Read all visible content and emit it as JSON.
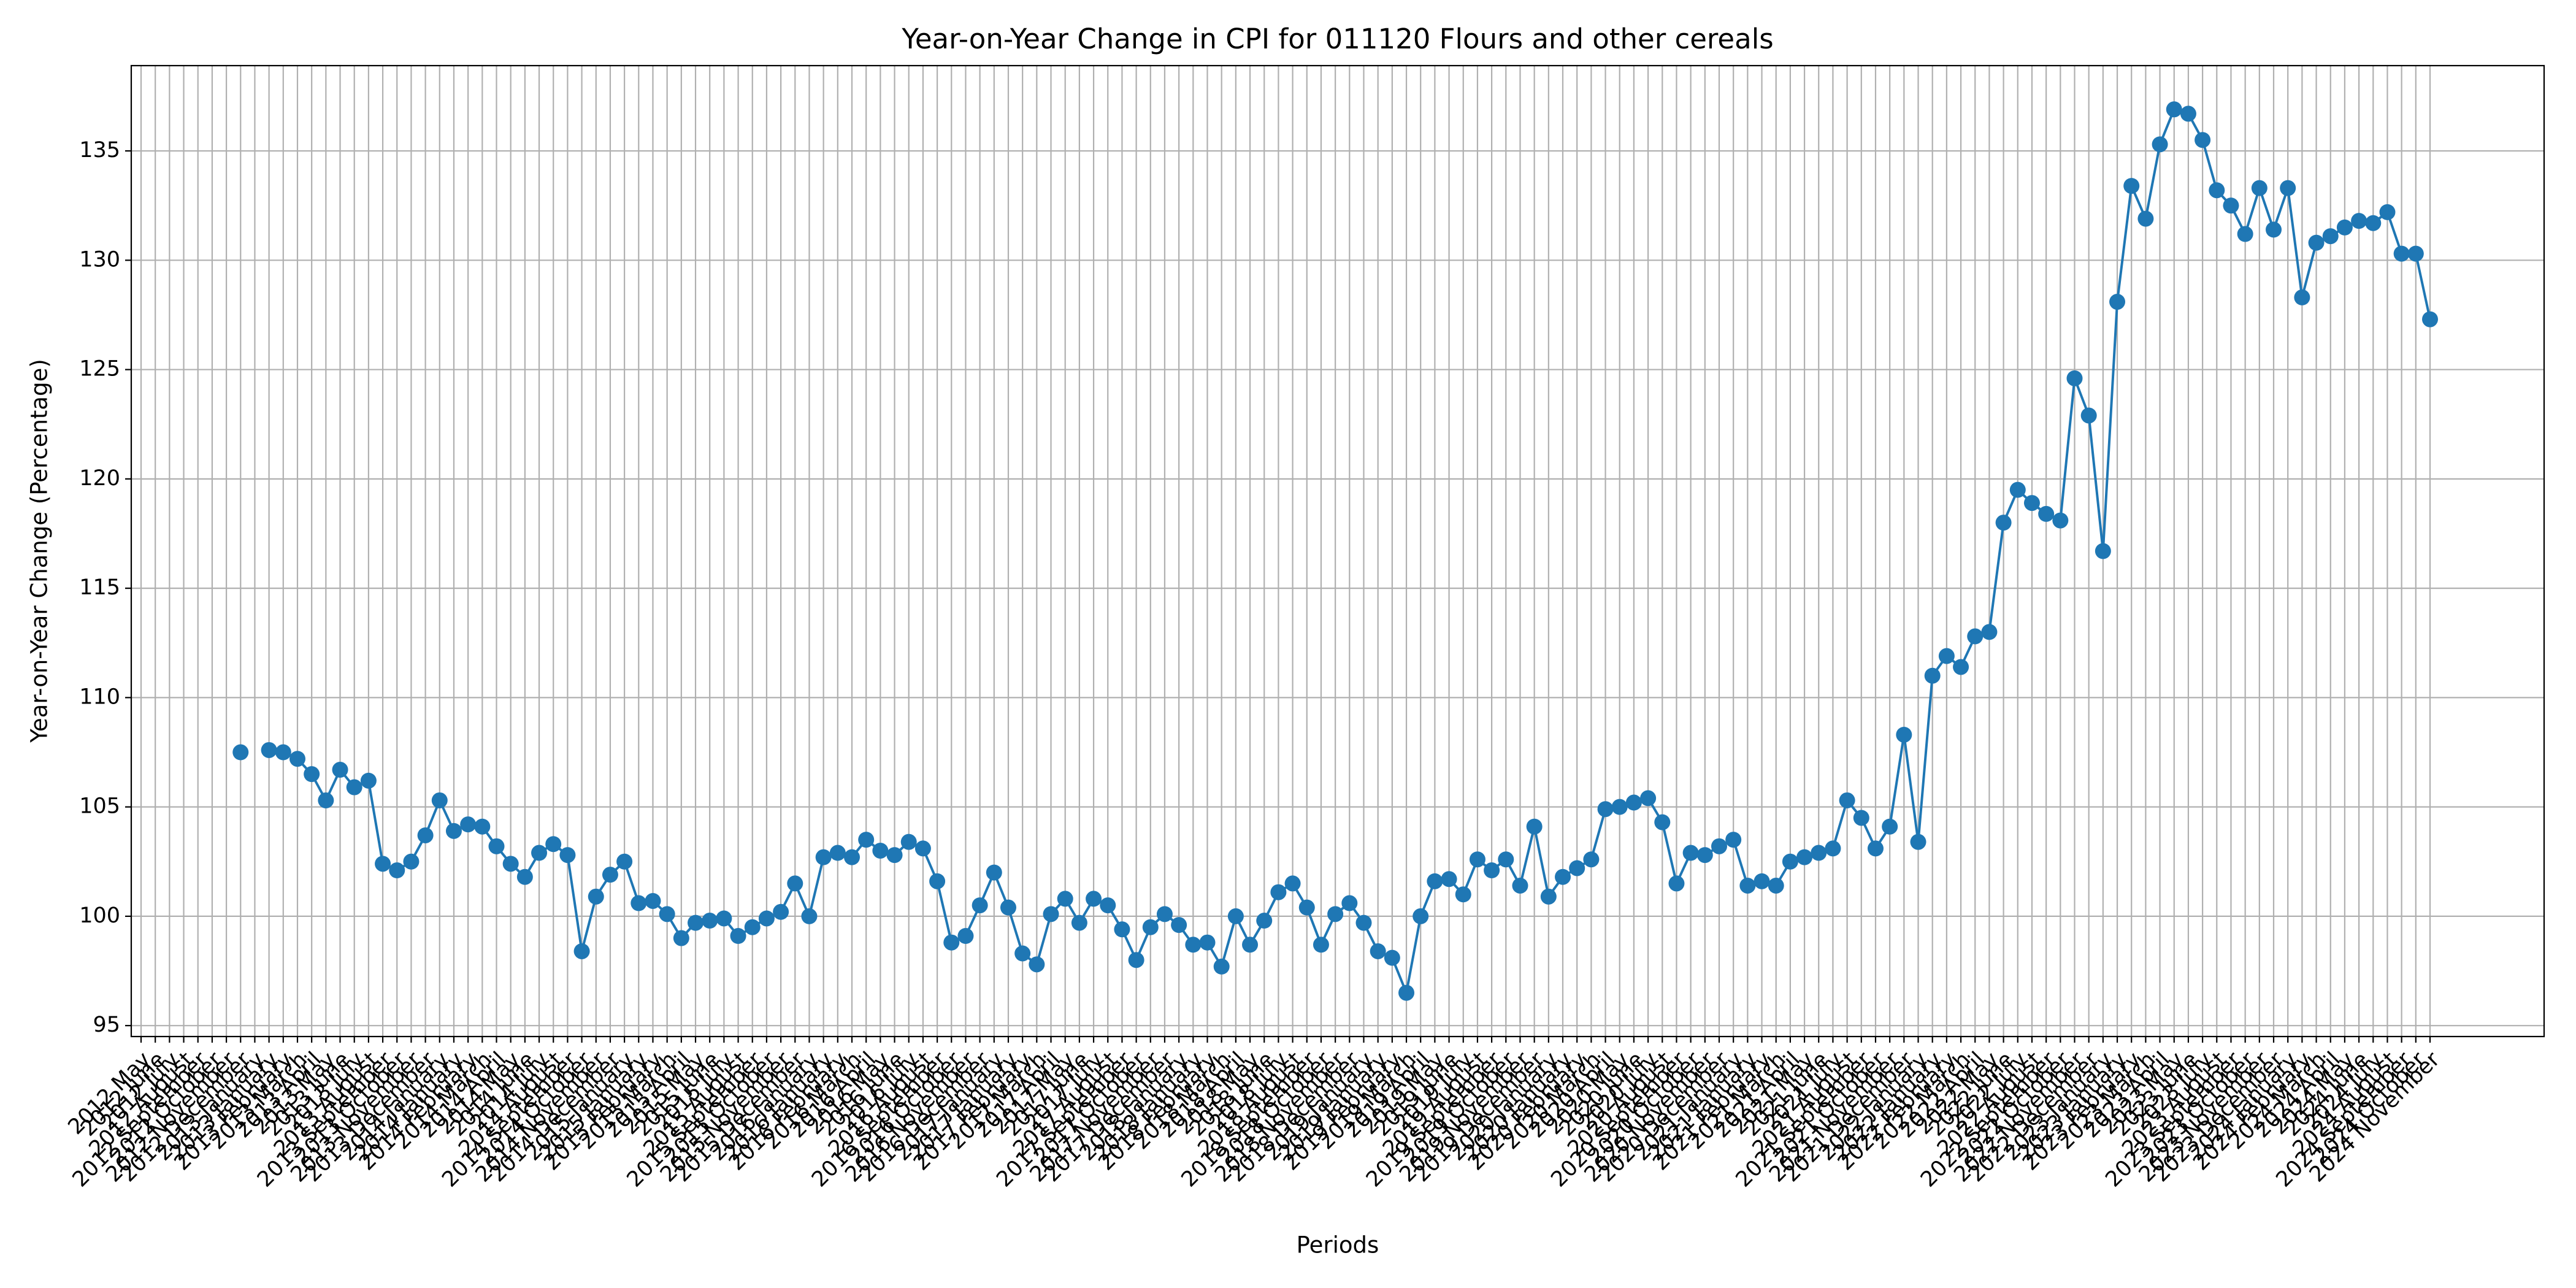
{
  "chart_data": {
    "type": "line",
    "title": "Year-on-Year Change in CPI for 011120 Flours and other cereals",
    "xlabel": "Periods",
    "ylabel": "Year-on-Year Change (Percentage)",
    "categories": [
      "2012 May",
      "2012 June",
      "2012 July",
      "2012 August",
      "2012 September",
      "2012 October",
      "2012 November",
      "2012 December",
      "2013 January",
      "2013 January",
      "2013 February",
      "2013 March",
      "2013 April",
      "2013 May",
      "2013 June",
      "2013 July",
      "2013 August",
      "2013 September",
      "2013 October",
      "2013 November",
      "2013 December",
      "2014 January",
      "2014 January",
      "2014 February",
      "2014 March",
      "2014 April",
      "2014 May",
      "2014 June",
      "2014 July",
      "2014 August",
      "2014 September",
      "2014 October",
      "2014 November",
      "2014 December",
      "2015 January",
      "2015 January",
      "2015 February",
      "2015 March",
      "2015 April",
      "2015 May",
      "2015 June",
      "2015 July",
      "2015 August",
      "2015 September",
      "2015 October",
      "2015 November",
      "2015 December",
      "2016 January",
      "2016 January",
      "2016 February",
      "2016 March",
      "2016 April",
      "2016 May",
      "2016 June",
      "2016 July",
      "2016 August",
      "2016 September",
      "2016 October",
      "2016 November",
      "2016 December",
      "2017 January",
      "2017 January",
      "2017 February",
      "2017 March",
      "2017 April",
      "2017 May",
      "2017 June",
      "2017 July",
      "2017 August",
      "2017 September",
      "2017 October",
      "2017 November",
      "2017 December",
      "2018 January",
      "2018 January",
      "2018 February",
      "2018 March",
      "2018 April",
      "2018 May",
      "2018 June",
      "2018 July",
      "2018 August",
      "2018 September",
      "2018 October",
      "2018 November",
      "2018 December",
      "2019 January",
      "2019 January",
      "2019 February",
      "2019 March",
      "2019 April",
      "2019 May",
      "2019 June",
      "2019 July",
      "2019 August",
      "2019 September",
      "2019 October",
      "2019 November",
      "2019 December",
      "2020 January",
      "2020 January",
      "2020 February",
      "2020 March",
      "2020 April",
      "2020 May",
      "2020 June",
      "2020 July",
      "2020 August",
      "2020 September",
      "2020 October",
      "2020 November",
      "2020 December",
      "2021 January",
      "2021 January",
      "2021 February",
      "2021 March",
      "2021 April",
      "2021 May",
      "2021 June",
      "2021 July",
      "2021 August",
      "2021 September",
      "2021 October",
      "2021 November",
      "2021 December",
      "2022 January",
      "2022 January",
      "2022 February",
      "2022 March",
      "2022 April",
      "2022 May",
      "2022 June",
      "2022 July",
      "2022 August",
      "2022 September",
      "2022 October",
      "2022 November",
      "2022 December",
      "2023 January",
      "2023 January",
      "2023 February",
      "2023 March",
      "2023 April",
      "2023 May",
      "2023 June",
      "2023 July",
      "2023 August",
      "2023 September",
      "2023 October",
      "2023 November",
      "2023 December",
      "2024 January",
      "2024 February",
      "2024 March",
      "2024 April",
      "2024 May",
      "2024 June",
      "2024 July",
      "2024 August",
      "2024 September",
      "2024 October",
      "2024 November"
    ],
    "series": [
      {
        "name": "Year-on-Year Change",
        "color": "#1f77b4",
        "values": [
          null,
          null,
          null,
          null,
          null,
          null,
          null,
          107.5,
          null,
          107.6,
          107.5,
          107.2,
          106.5,
          105.3,
          106.7,
          105.9,
          106.2,
          102.4,
          102.1,
          102.5,
          103.7,
          105.3,
          103.9,
          104.2,
          104.1,
          103.2,
          102.4,
          101.8,
          102.9,
          103.3,
          102.8,
          98.4,
          100.9,
          101.9,
          102.5,
          100.6,
          100.7,
          100.1,
          99.0,
          99.7,
          99.8,
          99.9,
          99.1,
          99.5,
          99.9,
          100.2,
          101.5,
          100.0,
          102.7,
          102.9,
          102.7,
          103.5,
          103.0,
          102.8,
          103.4,
          103.1,
          101.6,
          98.8,
          99.1,
          100.5,
          102.0,
          100.4,
          98.3,
          97.8,
          100.1,
          100.8,
          99.7,
          100.8,
          100.5,
          99.4,
          98.0,
          99.5,
          100.1,
          99.6,
          98.7,
          98.8,
          97.7,
          100.0,
          98.7,
          99.8,
          101.1,
          101.5,
          100.4,
          98.7,
          100.1,
          100.6,
          99.7,
          98.4,
          98.1,
          96.5,
          100.0,
          101.6,
          101.7,
          101.0,
          102.6,
          102.1,
          102.6,
          101.4,
          104.1,
          100.9,
          101.8,
          102.2,
          102.6,
          104.9,
          105.0,
          105.2,
          105.4,
          104.3,
          101.5,
          102.9,
          102.8,
          103.2,
          103.5,
          101.4,
          101.6,
          101.4,
          102.5,
          102.7,
          102.9,
          103.1,
          105.3,
          104.5,
          103.1,
          104.1,
          108.3,
          103.4,
          111.0,
          111.9,
          111.4,
          112.8,
          113.0,
          118.0,
          119.5,
          118.9,
          118.4,
          118.1,
          124.6,
          122.9,
          116.7,
          128.1,
          133.4,
          131.9,
          135.3,
          136.9,
          136.7,
          135.5,
          133.2,
          132.5,
          131.2,
          133.3,
          131.4,
          133.3,
          128.3,
          130.8,
          131.1,
          131.5,
          131.8,
          131.7,
          132.2,
          130.3,
          130.3,
          127.3
        ]
      }
    ],
    "ylim": [
      94.5,
      138.9
    ],
    "yticks": [
      95,
      100,
      105,
      110,
      115,
      120,
      125,
      130,
      135
    ],
    "grid": true
  }
}
